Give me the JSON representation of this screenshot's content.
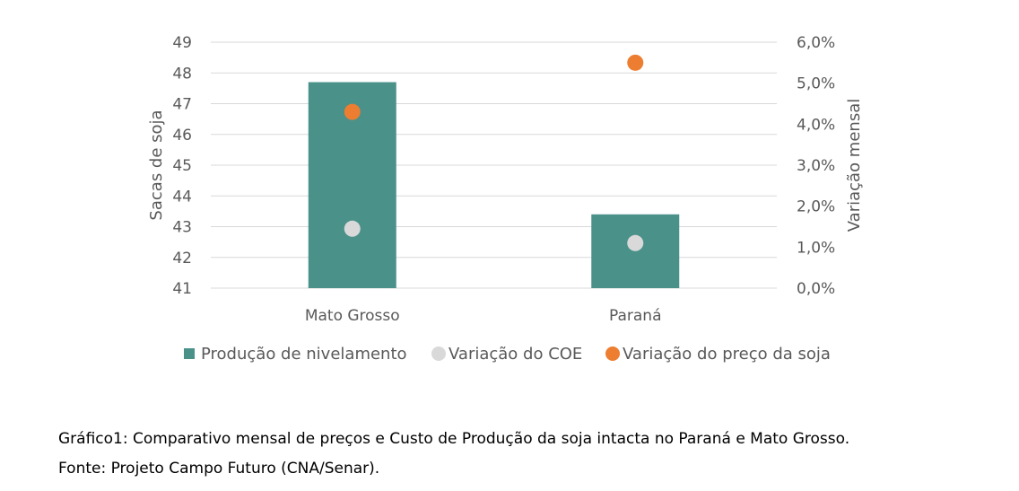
{
  "chart_data": {
    "type": "bar",
    "categories": [
      "Mato Grosso",
      "Paraná"
    ],
    "series": [
      {
        "name": "Produção de nivelamento",
        "kind": "bar",
        "axis": "left",
        "values": [
          47.7,
          43.4
        ]
      },
      {
        "name": "Variação do COE",
        "kind": "scatter",
        "axis": "right",
        "values": [
          1.45,
          1.1
        ]
      },
      {
        "name": "Variação do preço da soja",
        "kind": "scatter",
        "axis": "right",
        "values": [
          4.3,
          5.5
        ]
      }
    ],
    "y_left": {
      "label": "Sacas de soja",
      "range": [
        41,
        49
      ],
      "ticks": [
        "41",
        "42",
        "43",
        "44",
        "45",
        "46",
        "47",
        "48",
        "49"
      ]
    },
    "y_right": {
      "label": "Variação mensal",
      "range": [
        0,
        6
      ],
      "ticks": [
        "0,0%",
        "1,0%",
        "2,0%",
        "3,0%",
        "4,0%",
        "5,0%",
        "6,0%"
      ]
    },
    "grid": true,
    "legend_placement": "bottom",
    "colors": {
      "bar": "#4a918a",
      "coe": "#d9d9d9",
      "price": "#ed7d31",
      "grid": "#d9d9d9"
    }
  },
  "caption": {
    "line1": "Gráfico1: Comparativo mensal de preços e Custo de Produção da soja intacta no Paraná e Mato Grosso.",
    "line2": "Fonte: Projeto Campo Futuro (CNA/Senar)."
  }
}
